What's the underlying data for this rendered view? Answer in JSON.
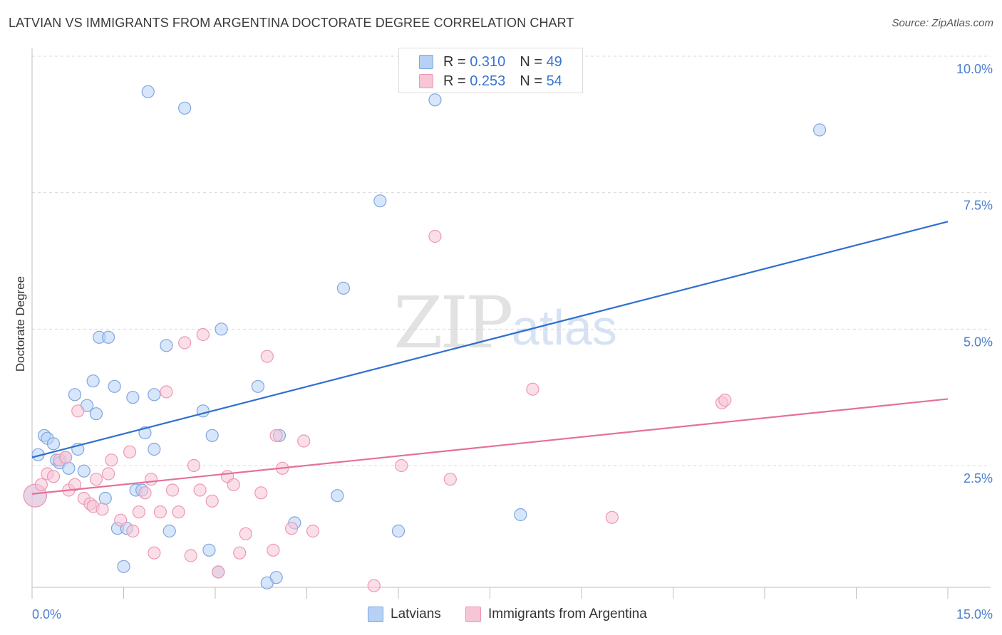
{
  "title": "LATVIAN VS IMMIGRANTS FROM ARGENTINA DOCTORATE DEGREE CORRELATION CHART",
  "source": "Source: ZipAtlas.com",
  "watermark": {
    "zip": "ZIP",
    "atlas": "atlas"
  },
  "legend": {
    "r_label": "R =",
    "n_label": "N =",
    "rows": [
      {
        "r": "0.310",
        "n": "49"
      },
      {
        "r": "0.253",
        "n": "54"
      }
    ]
  },
  "bottom_legend": [
    "Latvians",
    "Immigrants from Argentina"
  ],
  "colors": {
    "latvians_fill": "#b7d1f5",
    "latvians_stroke": "#7fa6e0",
    "latvians_line": "#2f6fd0",
    "argentina_fill": "#f8c5d6",
    "argentina_stroke": "#ec98b5",
    "argentina_line": "#e5709a",
    "tick": "#4a7fd0"
  },
  "chart_data": {
    "type": "scatter",
    "title": "LATVIAN VS IMMIGRANTS FROM ARGENTINA DOCTORATE DEGREE CORRELATION CHART",
    "xlabel": "",
    "ylabel": "Doctorate Degree",
    "xlim": [
      0,
      15
    ],
    "ylim": [
      0,
      10.5
    ],
    "x_tick_labels": [
      "0.0%",
      "15.0%"
    ],
    "y_ticks": [
      2.5,
      5.0,
      7.5,
      10.0
    ],
    "y_tick_labels": [
      "2.5%",
      "5.0%",
      "7.5%",
      "10.0%"
    ],
    "grid": true,
    "legend_position": "top-center",
    "series": [
      {
        "name": "Latvians",
        "r": 0.31,
        "n": 49,
        "trend": {
          "x": [
            0,
            15
          ],
          "y": [
            2.65,
            6.97
          ]
        },
        "points": [
          [
            0.05,
            1.95
          ],
          [
            0.1,
            2.7
          ],
          [
            0.2,
            3.05
          ],
          [
            0.25,
            3.0
          ],
          [
            0.35,
            2.9
          ],
          [
            0.4,
            2.6
          ],
          [
            0.45,
            2.55
          ],
          [
            0.55,
            2.65
          ],
          [
            0.6,
            2.45
          ],
          [
            0.7,
            3.8
          ],
          [
            0.75,
            2.8
          ],
          [
            0.85,
            2.4
          ],
          [
            0.9,
            3.6
          ],
          [
            1.0,
            4.05
          ],
          [
            1.05,
            3.45
          ],
          [
            1.1,
            4.85
          ],
          [
            1.2,
            1.9
          ],
          [
            1.25,
            4.85
          ],
          [
            1.35,
            3.95
          ],
          [
            1.4,
            1.35
          ],
          [
            1.5,
            0.65
          ],
          [
            1.55,
            1.35
          ],
          [
            1.65,
            3.75
          ],
          [
            1.7,
            2.05
          ],
          [
            1.8,
            2.05
          ],
          [
            1.85,
            3.1
          ],
          [
            1.9,
            9.35
          ],
          [
            2.0,
            3.8
          ],
          [
            2.0,
            2.8
          ],
          [
            2.2,
            4.7
          ],
          [
            2.25,
            1.3
          ],
          [
            2.5,
            9.05
          ],
          [
            2.8,
            3.5
          ],
          [
            2.9,
            0.95
          ],
          [
            2.95,
            3.05
          ],
          [
            3.05,
            0.55
          ],
          [
            3.1,
            5.0
          ],
          [
            3.7,
            3.95
          ],
          [
            3.85,
            0.35
          ],
          [
            4.0,
            0.45
          ],
          [
            4.05,
            3.05
          ],
          [
            4.3,
            1.45
          ],
          [
            5.0,
            1.95
          ],
          [
            5.1,
            5.75
          ],
          [
            5.7,
            7.35
          ],
          [
            6.0,
            1.3
          ],
          [
            6.6,
            9.2
          ],
          [
            8.0,
            1.6
          ],
          [
            12.9,
            8.65
          ]
        ]
      },
      {
        "name": "Immigrants from Argentina",
        "r": 0.253,
        "n": 54,
        "trend": {
          "x": [
            0,
            15
          ],
          "y": [
            1.98,
            3.72
          ]
        },
        "points": [
          [
            0.05,
            1.95
          ],
          [
            0.15,
            2.15
          ],
          [
            0.25,
            2.35
          ],
          [
            0.35,
            2.3
          ],
          [
            0.45,
            2.6
          ],
          [
            0.55,
            2.65
          ],
          [
            0.6,
            2.05
          ],
          [
            0.7,
            2.15
          ],
          [
            0.75,
            3.5
          ],
          [
            0.85,
            1.9
          ],
          [
            0.95,
            1.8
          ],
          [
            1.0,
            1.75
          ],
          [
            1.05,
            2.25
          ],
          [
            1.15,
            1.7
          ],
          [
            1.25,
            2.35
          ],
          [
            1.3,
            2.6
          ],
          [
            1.45,
            1.5
          ],
          [
            1.6,
            2.75
          ],
          [
            1.65,
            1.3
          ],
          [
            1.75,
            1.65
          ],
          [
            1.85,
            2.0
          ],
          [
            1.95,
            2.25
          ],
          [
            2.0,
            0.9
          ],
          [
            2.1,
            1.65
          ],
          [
            2.2,
            3.85
          ],
          [
            2.3,
            2.05
          ],
          [
            2.4,
            1.65
          ],
          [
            2.5,
            4.75
          ],
          [
            2.6,
            0.85
          ],
          [
            2.65,
            2.5
          ],
          [
            2.75,
            2.05
          ],
          [
            2.8,
            4.9
          ],
          [
            2.95,
            1.85
          ],
          [
            3.05,
            0.55
          ],
          [
            3.2,
            2.3
          ],
          [
            3.3,
            2.15
          ],
          [
            3.4,
            0.9
          ],
          [
            3.5,
            1.25
          ],
          [
            3.75,
            2.0
          ],
          [
            3.85,
            4.5
          ],
          [
            3.95,
            0.95
          ],
          [
            4.0,
            3.05
          ],
          [
            4.1,
            2.45
          ],
          [
            4.25,
            1.35
          ],
          [
            4.45,
            2.95
          ],
          [
            4.6,
            1.3
          ],
          [
            5.6,
            0.3
          ],
          [
            6.05,
            2.5
          ],
          [
            6.6,
            6.7
          ],
          [
            6.85,
            2.25
          ],
          [
            8.2,
            3.9
          ],
          [
            9.5,
            1.55
          ],
          [
            11.3,
            3.65
          ],
          [
            11.35,
            3.7
          ]
        ]
      }
    ]
  }
}
